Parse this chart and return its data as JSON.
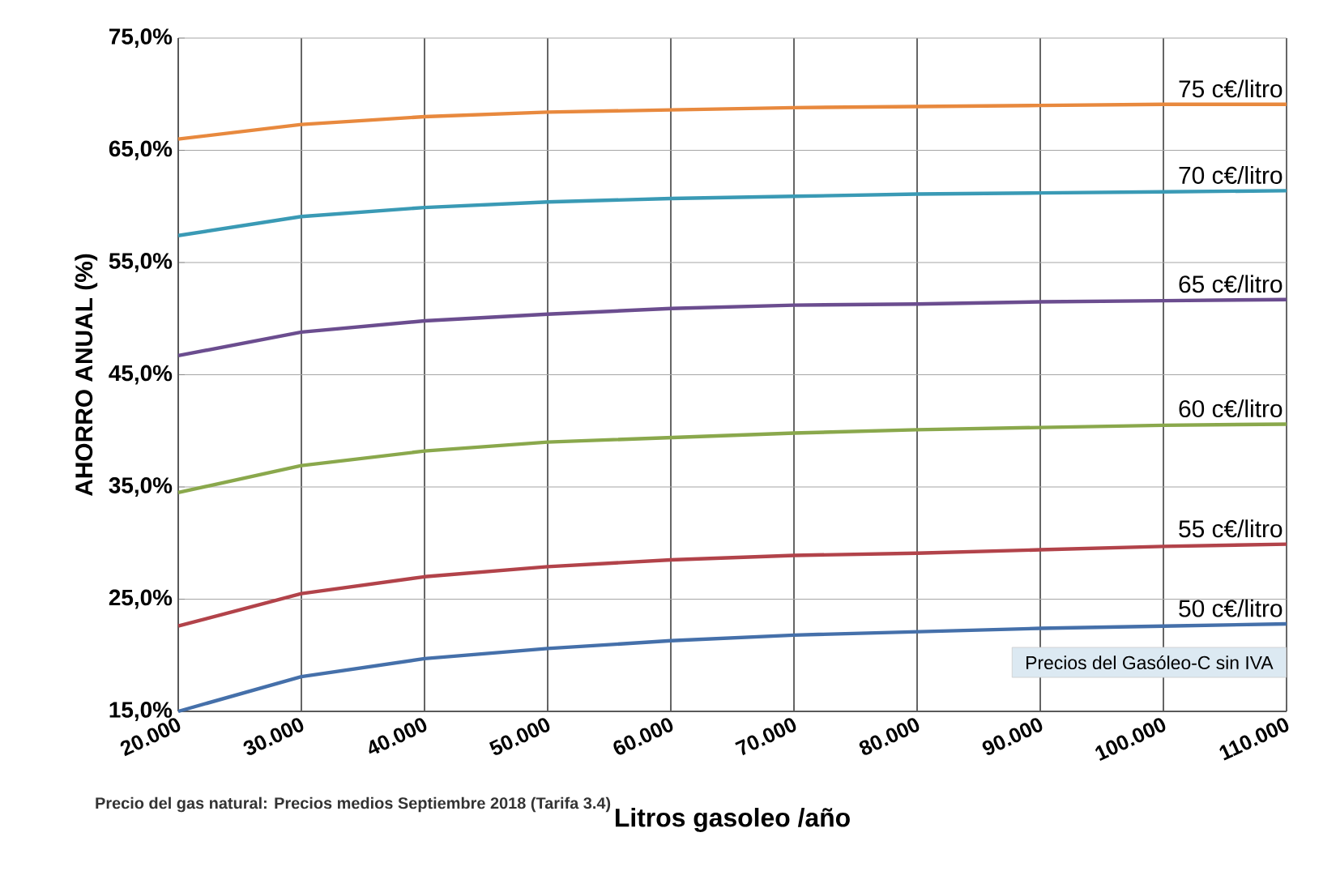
{
  "chart_data": {
    "type": "line",
    "xlabel": "Litros gasoleo /año",
    "ylabel": "AHORRO ANUAL (%)",
    "annotations": [
      "Precios del Gasóleo-C sin IVA",
      "Precio del gas natural: Precios medios Septiembre 2018 (Tarifa 3.4)"
    ],
    "x": [
      20000,
      30000,
      40000,
      50000,
      60000,
      70000,
      80000,
      90000,
      100000,
      110000
    ],
    "series": [
      {
        "name": "75 c€/litro",
        "color": "#e8893e",
        "values": [
          66.0,
          67.3,
          68.0,
          68.4,
          68.6,
          68.8,
          68.9,
          69.0,
          69.1,
          69.1
        ]
      },
      {
        "name": "70 c€/litro",
        "color": "#3a9ab5",
        "values": [
          57.4,
          59.1,
          59.9,
          60.4,
          60.7,
          60.9,
          61.1,
          61.2,
          61.3,
          61.4
        ]
      },
      {
        "name": "65 c€/litro",
        "color": "#6b4d8f",
        "values": [
          46.7,
          48.8,
          49.8,
          50.4,
          50.9,
          51.2,
          51.3,
          51.5,
          51.6,
          51.7
        ]
      },
      {
        "name": "60 c€/litro",
        "color": "#8aa84c",
        "values": [
          34.5,
          36.9,
          38.2,
          39.0,
          39.4,
          39.8,
          40.1,
          40.3,
          40.5,
          40.6
        ]
      },
      {
        "name": "55 c€/litro",
        "color": "#b2434a",
        "values": [
          22.6,
          25.5,
          27.0,
          27.9,
          28.5,
          28.9,
          29.1,
          29.4,
          29.7,
          29.9
        ]
      },
      {
        "name": "50 c€/litro",
        "color": "#4570aa",
        "values": [
          15.0,
          18.1,
          19.7,
          20.6,
          21.3,
          21.8,
          22.1,
          22.4,
          22.6,
          22.8
        ]
      }
    ],
    "xlim": [
      20000,
      110000
    ],
    "ylim": [
      15,
      75
    ],
    "xticks": [
      {
        "value": 20000,
        "label": "20.000"
      },
      {
        "value": 30000,
        "label": "30.000"
      },
      {
        "value": 40000,
        "label": "40.000"
      },
      {
        "value": 50000,
        "label": "50.000"
      },
      {
        "value": 60000,
        "label": "60.000"
      },
      {
        "value": 70000,
        "label": "70.000"
      },
      {
        "value": 80000,
        "label": "80.000"
      },
      {
        "value": 90000,
        "label": "90.000"
      },
      {
        "value": 100000,
        "label": "100.000"
      },
      {
        "value": 110000,
        "label": "110.000"
      }
    ],
    "yticks": [
      {
        "value": 15,
        "label": "15,0%"
      },
      {
        "value": 25,
        "label": "25,0%"
      },
      {
        "value": 35,
        "label": "35,0%"
      },
      {
        "value": 45,
        "label": "45,0%"
      },
      {
        "value": 55,
        "label": "55,0%"
      },
      {
        "value": 65,
        "label": "65,0%"
      },
      {
        "value": 75,
        "label": "75,0%"
      }
    ],
    "grid": true,
    "legend": false,
    "marker": "none",
    "line_style": "solid"
  }
}
